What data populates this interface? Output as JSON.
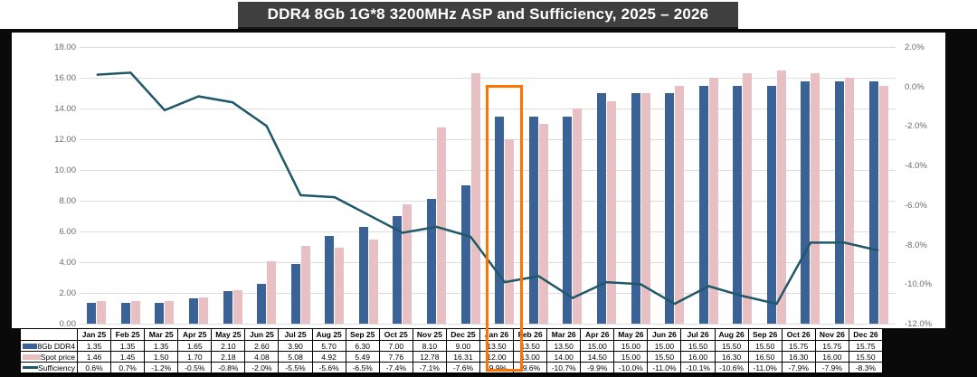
{
  "title": "DDR4 8Gb 1G*8 3200MHz ASP and Sufficiency, 2025 – 2026",
  "colors": {
    "ddr4_bar": "#3a6296",
    "spot_bar": "#e8c0c4",
    "sufficiency_line": "#1f5868",
    "highlight": "#ff7300",
    "title_bg": "#3f3f3f",
    "gridline": "#dcdcdc"
  },
  "chart_data": {
    "type": "bar",
    "subtype": "combo bar+line, dual axis",
    "categories": [
      "Jan 25",
      "Feb 25",
      "Mar 25",
      "Apr 25",
      "May 25",
      "Jun 25",
      "Jul 25",
      "Aug 25",
      "Sep 25",
      "Oct 25",
      "Nov 25",
      "Dec 25",
      "Jan 26",
      "Feb 26",
      "Mar 26",
      "Apr 26",
      "May 26",
      "Jun 26",
      "Jul 26",
      "Aug 26",
      "Sep 26",
      "Oct 26",
      "Nov 26",
      "Dec 26"
    ],
    "series": [
      {
        "name": "8Gb DDR4",
        "type": "bar",
        "axis": "left",
        "values": [
          1.35,
          1.35,
          1.35,
          1.65,
          2.1,
          2.6,
          3.9,
          5.7,
          6.3,
          7.0,
          8.1,
          9.0,
          13.5,
          13.5,
          13.5,
          15.0,
          15.0,
          15.0,
          15.5,
          15.5,
          15.5,
          15.75,
          15.75,
          15.75
        ]
      },
      {
        "name": "Spot price",
        "type": "bar",
        "axis": "left",
        "values": [
          1.46,
          1.45,
          1.5,
          1.7,
          2.18,
          4.08,
          5.08,
          4.92,
          5.49,
          7.76,
          12.78,
          16.31,
          12.0,
          13.0,
          14.0,
          14.5,
          15.0,
          15.5,
          16.0,
          16.3,
          16.5,
          16.3,
          16.0,
          15.5
        ]
      },
      {
        "name": "Sufficiency",
        "type": "line",
        "axis": "right",
        "values": [
          0.6,
          0.7,
          -1.2,
          -0.5,
          -0.8,
          -2.0,
          -5.5,
          -5.6,
          -6.5,
          -7.4,
          -7.1,
          -7.6,
          -9.9,
          -9.6,
          -10.7,
          -9.9,
          -10.0,
          -11.0,
          -10.1,
          -10.6,
          -11.0,
          -7.9,
          -7.9,
          -8.3
        ]
      }
    ],
    "left_axis": {
      "min": 0,
      "max": 18,
      "tick_labels": [
        "18.00",
        "16.00",
        "14.00",
        "12.00",
        "10.00",
        "8.00",
        "6.00",
        "4.00",
        "2.00",
        "0.00"
      ]
    },
    "right_axis": {
      "min": -12,
      "max": 2,
      "tick_labels": [
        "2.0%",
        "0.0%",
        "-2.0%",
        "-4.0%",
        "-6.0%",
        "-8.0%",
        "-10.0%",
        "-12.0%"
      ]
    },
    "grid": true,
    "legend_position": "table-left",
    "highlight": {
      "category": "Jan 26"
    }
  },
  "table": {
    "corner_label": "",
    "columns": [
      "Jan 25",
      "Feb 25",
      "Mar 25",
      "Apr 25",
      "May 25",
      "Jun 25",
      "Jul 25",
      "Aug 25",
      "Sep 25",
      "Oct 25",
      "Nov 25",
      "Dec 25",
      "Jan 26",
      "Feb 26",
      "Mar 26",
      "Apr 26",
      "May 26",
      "Jun 26",
      "Jul 26",
      "Aug 26",
      "Sep 26",
      "Oct 26",
      "Nov 26",
      "Dec 26"
    ],
    "rows": [
      {
        "label": "8Gb DDR4",
        "values": [
          "1.35",
          "1.35",
          "1.35",
          "1.65",
          "2.10",
          "2.60",
          "3.90",
          "5.70",
          "6.30",
          "7.00",
          "8.10",
          "9.00",
          "13.50",
          "13.50",
          "13.50",
          "15.00",
          "15.00",
          "15.00",
          "15.50",
          "15.50",
          "15.50",
          "15.75",
          "15.75",
          "15.75"
        ]
      },
      {
        "label": "Spot price",
        "values": [
          "1.46",
          "1.45",
          "1.50",
          "1.70",
          "2.18",
          "4.08",
          "5.08",
          "4.92",
          "5.49",
          "7.76",
          "12.78",
          "16.31",
          "12.00",
          "13.00",
          "14.00",
          "14.50",
          "15.00",
          "15.50",
          "16.00",
          "16.30",
          "16.50",
          "16.30",
          "16.00",
          "15.50"
        ]
      },
      {
        "label": "Sufficiency",
        "values": [
          "0.6%",
          "0.7%",
          "-1.2%",
          "-0.5%",
          "-0.8%",
          "-2.0%",
          "-5.5%",
          "-5.6%",
          "-6.5%",
          "-7.4%",
          "-7.1%",
          "-7.6%",
          "-9.9%",
          "-9.6%",
          "-10.7%",
          "-9.9%",
          "-10.0%",
          "-11.0%",
          "-10.1%",
          "-10.6%",
          "-11.0%",
          "-7.9%",
          "-7.9%",
          "-8.3%"
        ]
      }
    ]
  }
}
